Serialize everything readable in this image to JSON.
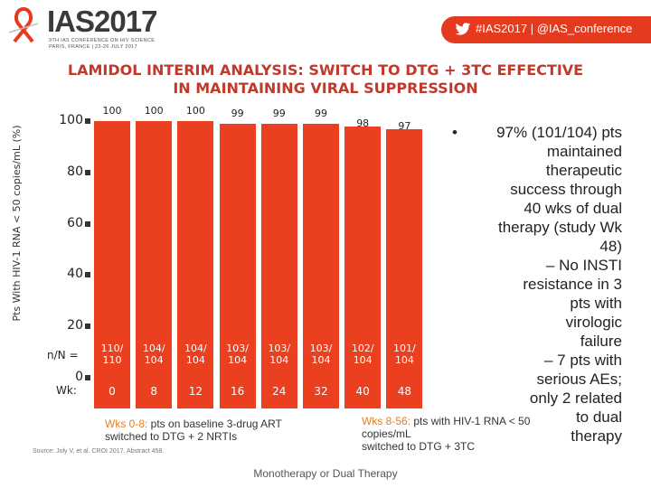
{
  "header": {
    "logo_title": "IAS2017",
    "logo_sub1": "9TH IAS CONFERENCE ON HIV SCIENCE",
    "logo_sub2": "PARIS, FRANCE | 23-26 JULY 2017",
    "hashtag": "#IAS2017 | @IAS_conference",
    "accent_color": "#e63a1f"
  },
  "slide": {
    "title_line1": "LAMIDOL INTERIM ANALYSIS: SWITCH TO DTG + 3TC EFFECTIVE",
    "title_line2": "IN MAINTAINING VIRAL SUPPRESSION",
    "footer": "Monotherapy or Dual Therapy",
    "source": "Source: Joly V, et al. CROI 2017. Abstract 458."
  },
  "chart_data": {
    "type": "bar",
    "ylabel": "Pts With HIV-1 RNA < 50 copies/mL (%)",
    "ylim": [
      0,
      100
    ],
    "yticks": [
      "0",
      "20",
      "40",
      "60",
      "80",
      "100"
    ],
    "bar_color": "#ea4020",
    "values": [
      100,
      100,
      100,
      99,
      99,
      99,
      98,
      97
    ],
    "value_labels": [
      "100",
      "100",
      "100",
      "99",
      "99",
      "99",
      "98",
      "97"
    ],
    "n_label": "n/N =",
    "n_values": [
      [
        "110/",
        "110"
      ],
      [
        "104/",
        "104"
      ],
      [
        "104/",
        "104"
      ],
      [
        "103/",
        "104"
      ],
      [
        "103/",
        "104"
      ],
      [
        "103/",
        "104"
      ],
      [
        "102/",
        "104"
      ],
      [
        "101/",
        "104"
      ]
    ],
    "wk_label": "Wk:",
    "categories": [
      "0",
      "8",
      "12",
      "16",
      "24",
      "32",
      "40",
      "48"
    ],
    "notes": {
      "left_hl": "Wks 0-8:",
      "left_l1": " pts on baseline 3-drug ART",
      "left_l2": "switched to DTG + 2 NRTIs",
      "right_hl": "Wks 8-56:",
      "right_l1": " pts with HIV-1 RNA < 50",
      "right_l2": "copies/mL",
      "right_l3": "switched to DTG + 3TC"
    }
  },
  "bullets": {
    "dot": "•",
    "main": [
      "97% (101/104) pts",
      "maintained",
      "therapeutic",
      "success through",
      "40 wks of dual",
      "therapy (study Wk",
      "48)"
    ],
    "sub1": [
      "– No INSTI",
      "resistance in 3",
      "pts with",
      "virologic",
      "failure"
    ],
    "sub2": [
      "– 7 pts with",
      "serious AEs;",
      "only 2 related",
      "to dual",
      "therapy"
    ]
  }
}
